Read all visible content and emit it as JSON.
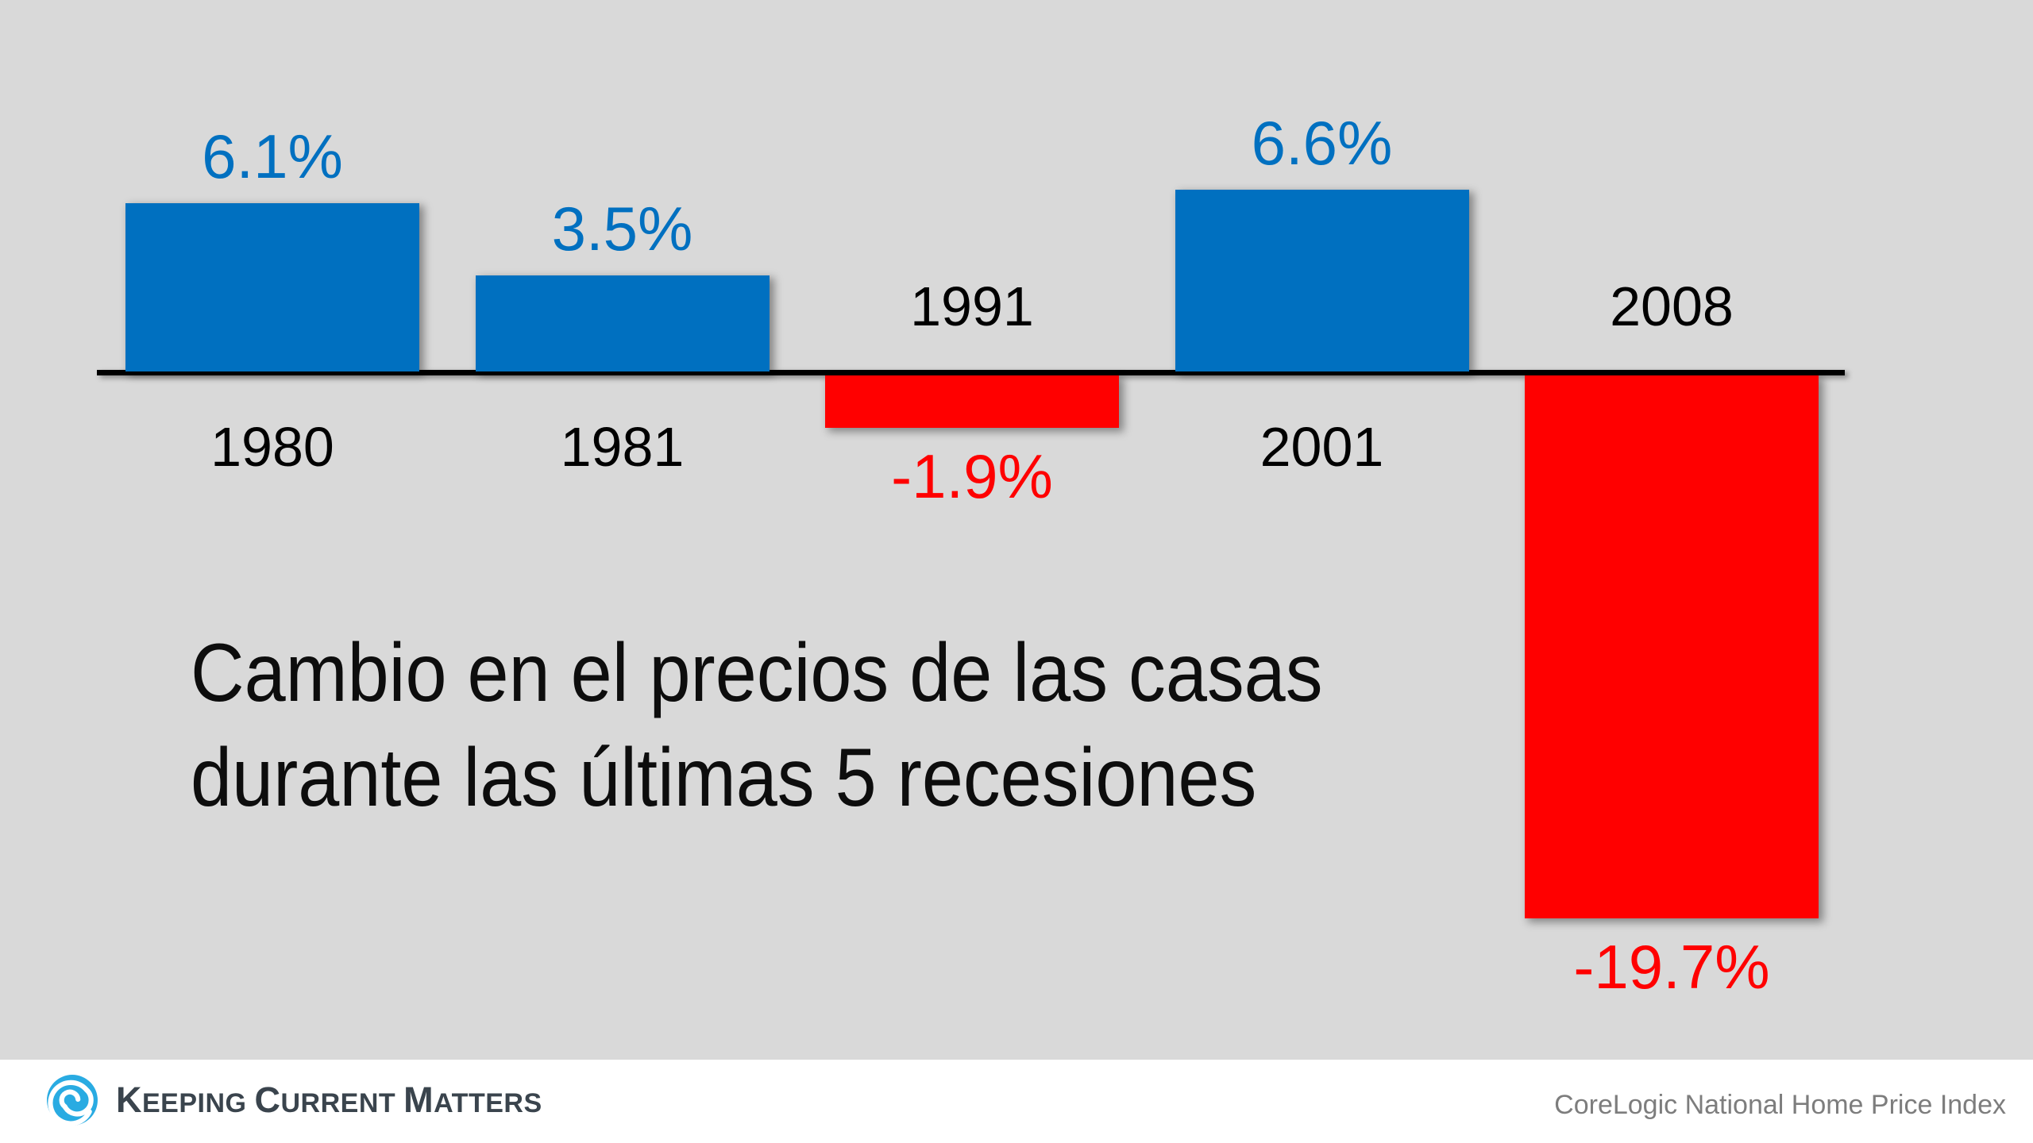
{
  "title": {
    "line1": "Cambio en el precios de las casas",
    "line2": "durante las últimas 5 recesiones"
  },
  "chart_data": {
    "type": "bar",
    "title": "Cambio en el precios de las casas durante las últimas 5 recesiones",
    "categories": [
      "1980",
      "1981",
      "1991",
      "2001",
      "2008"
    ],
    "values": [
      6.1,
      3.5,
      -1.9,
      6.6,
      -19.7
    ],
    "value_labels": [
      "6.1%",
      "3.5%",
      "-1.9%",
      "6.6%",
      "-19.7%"
    ],
    "ylabel": "",
    "xlabel": "",
    "baseline": 0,
    "grid": false,
    "legend": false,
    "positive_color": "#0070C0",
    "negative_color": "#FF0000",
    "axis_color": "#000000",
    "background_color": "#D9D9D9"
  },
  "footer": {
    "brand": "Keeping Current Matters",
    "brand_color": "#3A444D",
    "logo_color": "#29ABE2",
    "source": "CoreLogic National Home Price Index",
    "source_color": "#7D7D7D"
  }
}
